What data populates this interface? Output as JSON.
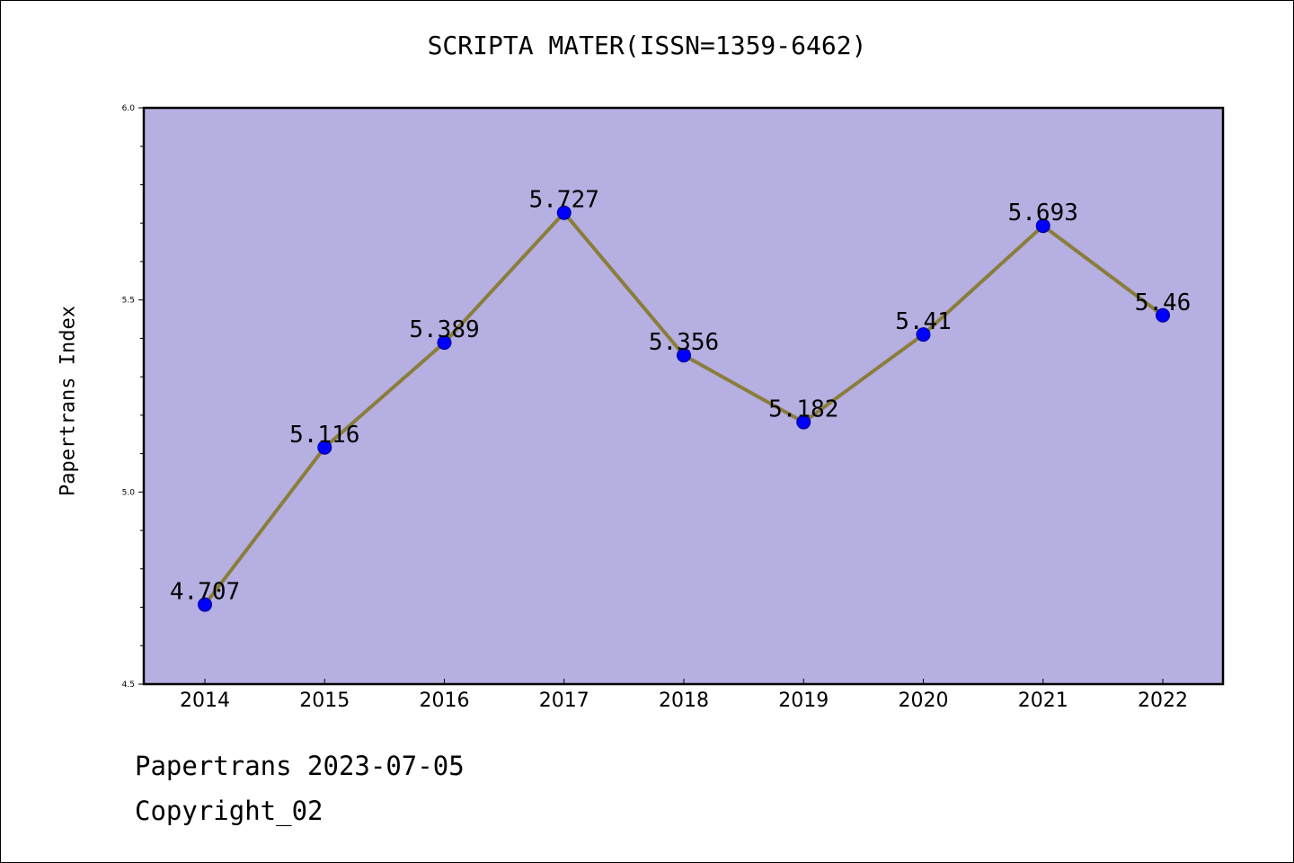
{
  "chart_data": {
    "type": "line",
    "title": "SCRIPTA MATER(ISSN=1359-6462)",
    "xlabel": "",
    "ylabel": "Papertrans Index",
    "categories": [
      "2014",
      "2015",
      "2016",
      "2017",
      "2018",
      "2019",
      "2020",
      "2021",
      "2022"
    ],
    "values": [
      4.707,
      5.116,
      5.389,
      5.727,
      5.356,
      5.182,
      5.41,
      5.693,
      5.46
    ],
    "data_labels": [
      "4.707",
      "5.116",
      "5.389",
      "5.727",
      "5.356",
      "5.182",
      "5.41",
      "5.693",
      "5.46"
    ],
    "ylim": [
      4.5,
      6.0
    ],
    "yticks": [
      "4.5",
      "5.0",
      "5.5",
      "6.0"
    ],
    "grid": false,
    "colors": {
      "plot_bg": "#b5afe2",
      "line": "#8b7d3a",
      "marker": "#0000ff",
      "marker_edge": "#00008b"
    }
  },
  "footer": {
    "date": "Papertrans 2023-07-05",
    "copyright": "Copyright_02"
  }
}
